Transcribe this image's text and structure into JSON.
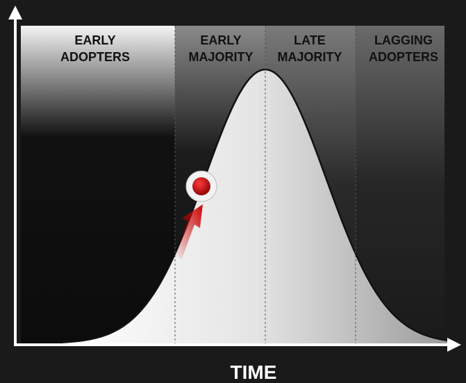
{
  "stages": [
    {
      "lines": [
        "EARLY",
        "ADOPTERS"
      ]
    },
    {
      "lines": [
        "EARLY",
        "MAJORITY"
      ]
    },
    {
      "lines": [
        "LATE",
        "MAJORITY"
      ]
    },
    {
      "lines": [
        "LAGGING",
        "ADOPTERS"
      ]
    }
  ],
  "x_axis_label": "TIME"
}
